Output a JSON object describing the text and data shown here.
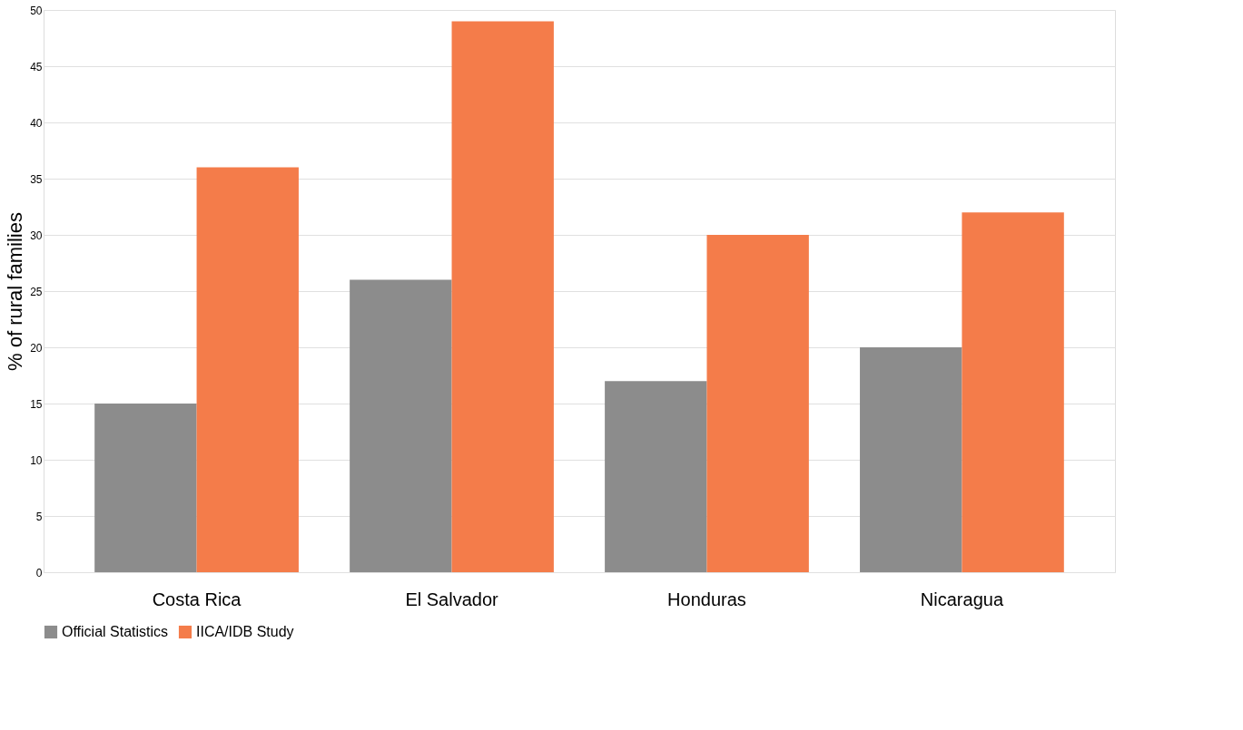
{
  "chart_data": {
    "type": "bar",
    "ylabel": "% of rural families",
    "categories": [
      "Costa Rica",
      "El Salvador",
      "Honduras",
      "Nicaragua"
    ],
    "series": [
      {
        "name": "Official Statistics",
        "color": "#8c8c8c",
        "values": [
          15,
          26,
          17,
          20
        ]
      },
      {
        "name": "IICA/IDB Study",
        "color": "#f47c4a",
        "values": [
          36,
          49,
          30,
          32
        ]
      }
    ],
    "ylim": [
      0,
      50
    ],
    "yticks": [
      0,
      5,
      10,
      15,
      20,
      25,
      30,
      35,
      40,
      45,
      50
    ],
    "grid": "y",
    "legend": "bottom"
  }
}
